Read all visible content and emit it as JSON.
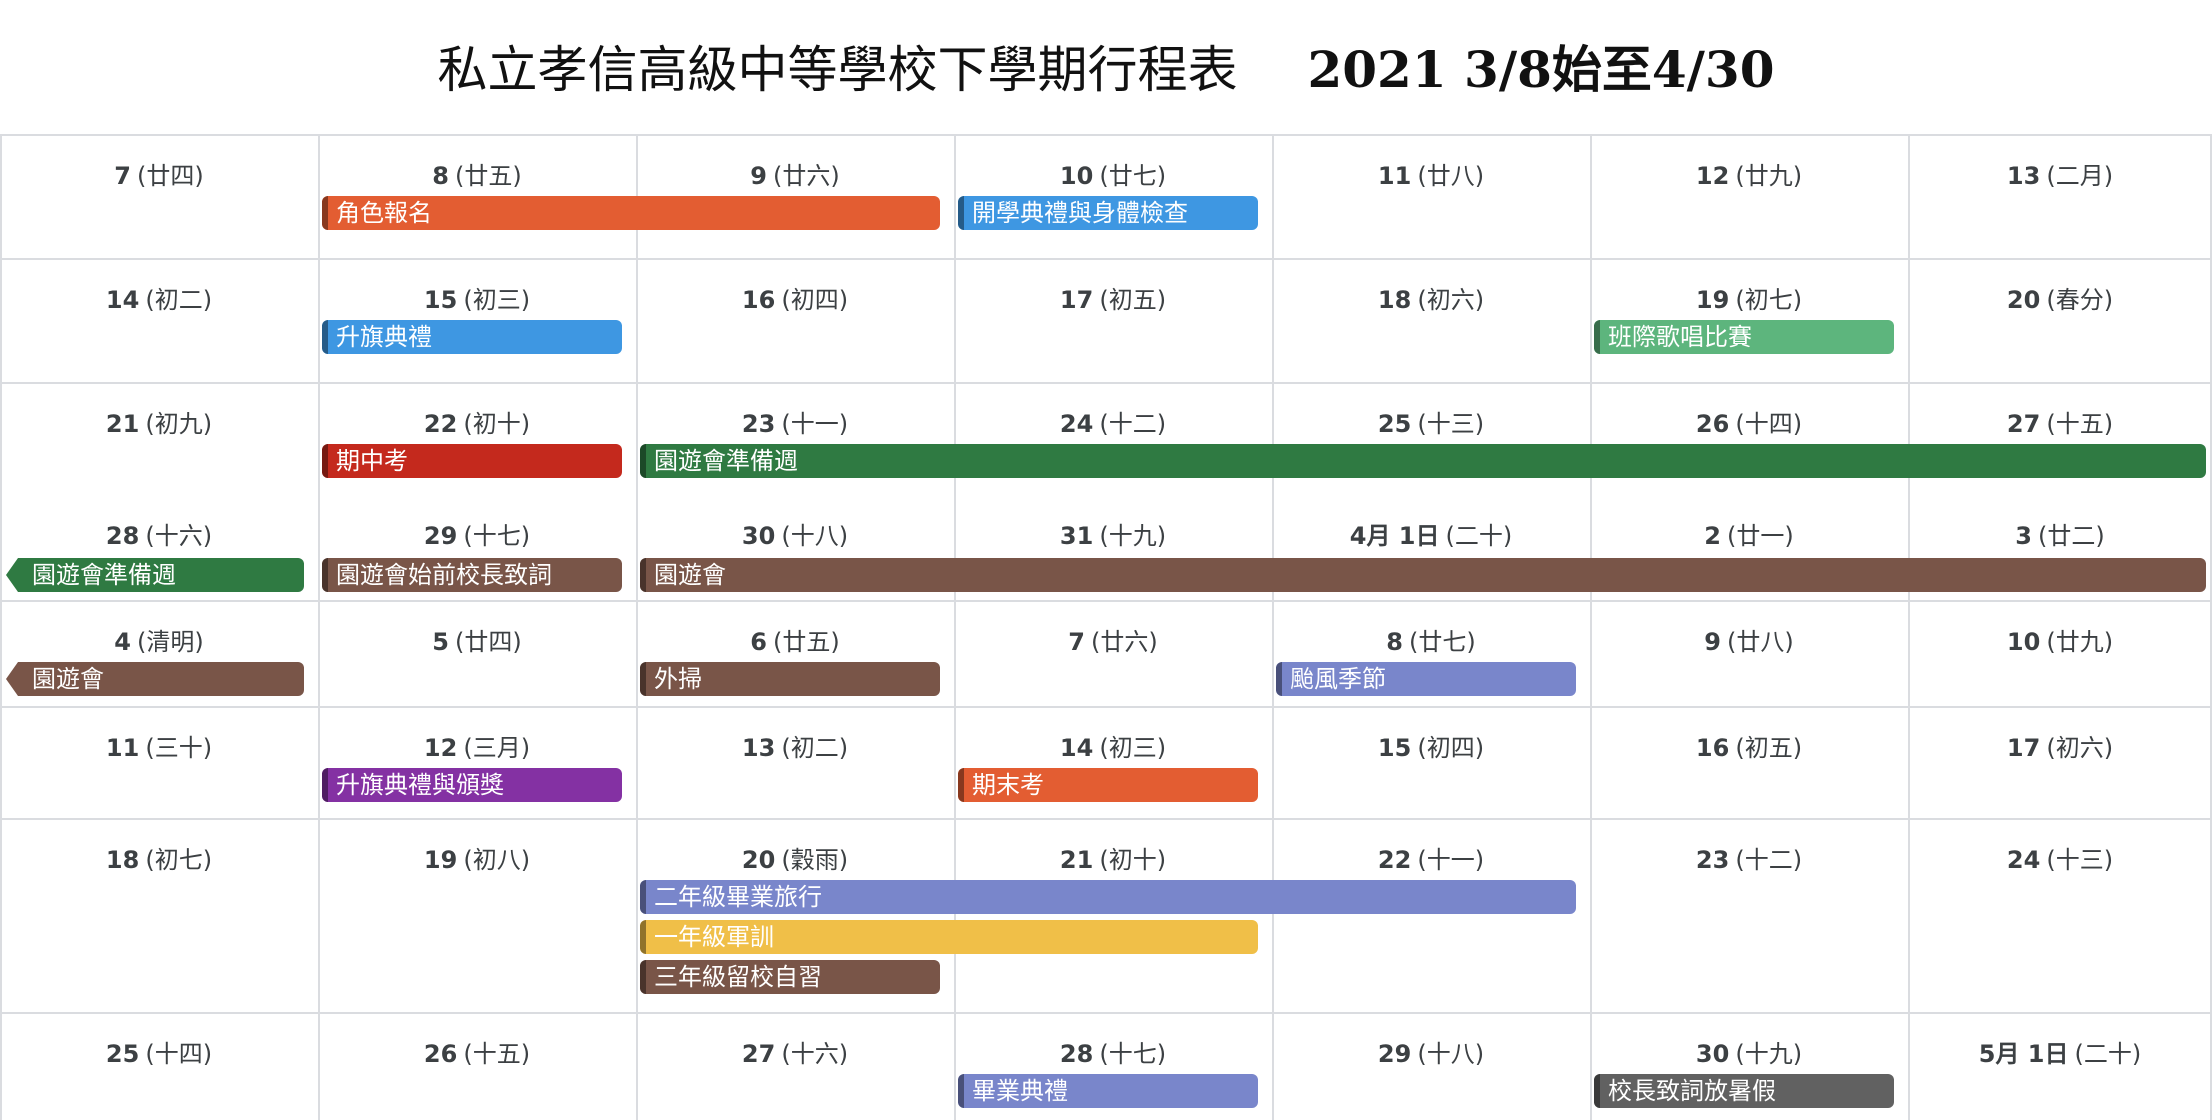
{
  "header": {
    "title_main": "私立孝信高級中等學校下學期行程表",
    "title_date": "2021 3/8始至4/30"
  },
  "colors": {
    "orange": "#e35d32",
    "blue": "#3e97e2",
    "green_light": "#5db57d",
    "red": "#c4291d",
    "green_dark": "#2f7a42",
    "brown": "#795548",
    "periwinkle": "#7986cb",
    "purple": "#8431a3",
    "yellow": "#f0bf48",
    "gray": "#616161"
  },
  "weeks": [
    {
      "days": [
        {
          "num": "7",
          "lunar": "(廿四)"
        },
        {
          "num": "8",
          "lunar": "(廿五)"
        },
        {
          "num": "9",
          "lunar": "(廿六)"
        },
        {
          "num": "10",
          "lunar": "(廿七)"
        },
        {
          "num": "11",
          "lunar": "(廿八)"
        },
        {
          "num": "12",
          "lunar": "(廿九)"
        },
        {
          "num": "13",
          "lunar": "(二月)"
        }
      ],
      "events": [
        {
          "label": "角色報名",
          "start": 1,
          "span": 2,
          "color": "#e35d32"
        },
        {
          "label": "開學典禮與身體檢查",
          "start": 3,
          "span": 1,
          "color": "#3e97e2"
        }
      ]
    },
    {
      "days": [
        {
          "num": "14",
          "lunar": "(初二)"
        },
        {
          "num": "15",
          "lunar": "(初三)"
        },
        {
          "num": "16",
          "lunar": "(初四)"
        },
        {
          "num": "17",
          "lunar": "(初五)"
        },
        {
          "num": "18",
          "lunar": "(初六)"
        },
        {
          "num": "19",
          "lunar": "(初七)"
        },
        {
          "num": "20",
          "lunar": "(春分)"
        }
      ],
      "events": [
        {
          "label": "升旗典禮",
          "start": 1,
          "span": 1,
          "color": "#3e97e2"
        },
        {
          "label": "班際歌唱比賽",
          "start": 5,
          "span": 1,
          "color": "#5db57d"
        }
      ]
    },
    {
      "days": [
        {
          "num": "21",
          "lunar": "(初九)"
        },
        {
          "num": "22",
          "lunar": "(初十)"
        },
        {
          "num": "23",
          "lunar": "(十一)"
        },
        {
          "num": "24",
          "lunar": "(十二)"
        },
        {
          "num": "25",
          "lunar": "(十三)"
        },
        {
          "num": "26",
          "lunar": "(十四)"
        },
        {
          "num": "27",
          "lunar": "(十五)"
        }
      ],
      "events": [
        {
          "label": "期中考",
          "start": 1,
          "span": 1,
          "color": "#c4291d"
        },
        {
          "label": "園遊會準備週",
          "start": 2,
          "span": 5,
          "color": "#2f7a42"
        }
      ]
    },
    {
      "days": [
        {
          "num": "28",
          "lunar": "(十六)"
        },
        {
          "num": "29",
          "lunar": "(十七)"
        },
        {
          "num": "30",
          "lunar": "(十八)"
        },
        {
          "num": "31",
          "lunar": "(十九)"
        },
        {
          "num": "4月 1日",
          "lunar": "(二十)"
        },
        {
          "num": "2",
          "lunar": "(廿一)"
        },
        {
          "num": "3",
          "lunar": "(廿二)"
        }
      ],
      "events": [
        {
          "label": "園遊會準備週",
          "start": 0,
          "span": 1,
          "color": "#2f7a42",
          "continued": true
        },
        {
          "label": "園遊會始前校長致詞",
          "start": 1,
          "span": 1,
          "color": "#795548"
        },
        {
          "label": "園遊會",
          "start": 2,
          "span": 5,
          "color": "#795548"
        }
      ]
    },
    {
      "days": [
        {
          "num": "4",
          "lunar": "(清明)"
        },
        {
          "num": "5",
          "lunar": "(廿四)"
        },
        {
          "num": "6",
          "lunar": "(廿五)"
        },
        {
          "num": "7",
          "lunar": "(廿六)"
        },
        {
          "num": "8",
          "lunar": "(廿七)"
        },
        {
          "num": "9",
          "lunar": "(廿八)"
        },
        {
          "num": "10",
          "lunar": "(廿九)"
        }
      ],
      "events": [
        {
          "label": "園遊會",
          "start": 0,
          "span": 1,
          "color": "#795548",
          "continued": true
        },
        {
          "label": "外掃",
          "start": 2,
          "span": 1,
          "color": "#795548"
        },
        {
          "label": "颱風季節",
          "start": 4,
          "span": 1,
          "color": "#7986cb"
        }
      ]
    },
    {
      "days": [
        {
          "num": "11",
          "lunar": "(三十)"
        },
        {
          "num": "12",
          "lunar": "(三月)"
        },
        {
          "num": "13",
          "lunar": "(初二)"
        },
        {
          "num": "14",
          "lunar": "(初三)"
        },
        {
          "num": "15",
          "lunar": "(初四)"
        },
        {
          "num": "16",
          "lunar": "(初五)"
        },
        {
          "num": "17",
          "lunar": "(初六)"
        }
      ],
      "events": [
        {
          "label": "升旗典禮與頒獎",
          "start": 1,
          "span": 1,
          "color": "#8431a3"
        },
        {
          "label": "期末考",
          "start": 3,
          "span": 1,
          "color": "#e35d32"
        }
      ]
    },
    {
      "days": [
        {
          "num": "18",
          "lunar": "(初七)"
        },
        {
          "num": "19",
          "lunar": "(初八)"
        },
        {
          "num": "20",
          "lunar": "(穀雨)"
        },
        {
          "num": "21",
          "lunar": "(初十)"
        },
        {
          "num": "22",
          "lunar": "(十一)"
        },
        {
          "num": "23",
          "lunar": "(十二)"
        },
        {
          "num": "24",
          "lunar": "(十三)"
        }
      ],
      "events": [
        {
          "label": "二年級畢業旅行",
          "start": 2,
          "span": 3,
          "color": "#7986cb"
        },
        {
          "label": "一年級軍訓",
          "start": 2,
          "span": 2,
          "color": "#f0bf48"
        },
        {
          "label": "三年級留校自習",
          "start": 2,
          "span": 1,
          "color": "#795548"
        }
      ]
    },
    {
      "days": [
        {
          "num": "25",
          "lunar": "(十四)"
        },
        {
          "num": "26",
          "lunar": "(十五)"
        },
        {
          "num": "27",
          "lunar": "(十六)"
        },
        {
          "num": "28",
          "lunar": "(十七)"
        },
        {
          "num": "29",
          "lunar": "(十八)"
        },
        {
          "num": "30",
          "lunar": "(十九)"
        },
        {
          "num": "5月 1日",
          "lunar": "(二十)"
        }
      ],
      "events": [
        {
          "label": "畢業典禮",
          "start": 3,
          "span": 1,
          "color": "#7986cb"
        },
        {
          "label": "校長致詞放暑假",
          "start": 5,
          "span": 1,
          "color": "#616161"
        }
      ]
    }
  ]
}
